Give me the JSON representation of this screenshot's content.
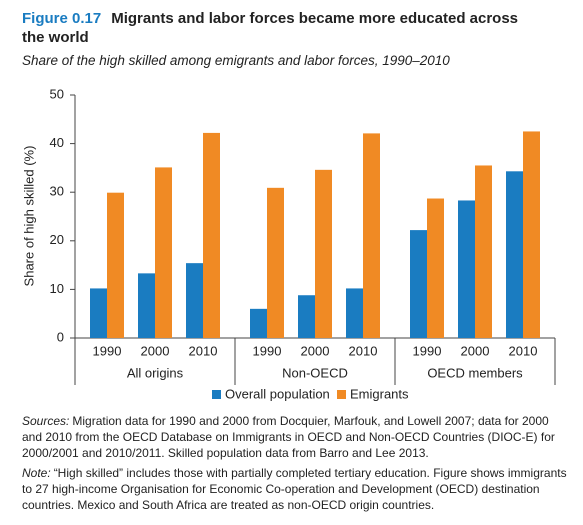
{
  "chart_data": {
    "type": "bar",
    "figure_label": "Figure 0.17",
    "title": "Migrants and labor forces became more educated across the world",
    "subtitle": "Share of the high skilled among emigrants and labor forces, 1990–2010",
    "y_label": "Share of high skilled (%)",
    "categories": [
      "1990",
      "2000",
      "2010",
      "1990",
      "2000",
      "2010",
      "1990",
      "2000",
      "2010"
    ],
    "category_groups": [
      "All origins",
      "Non-OECD",
      "OECD members"
    ],
    "series": [
      {
        "name": "Overall population",
        "color": "#1a7cc1",
        "values": [
          10.2,
          13.3,
          15.4,
          6.0,
          8.8,
          10.2,
          22.2,
          28.3,
          34.3
        ]
      },
      {
        "name": "Emigrants",
        "color": "#f08a24",
        "values": [
          29.9,
          35.1,
          42.2,
          30.9,
          34.6,
          42.1,
          28.7,
          35.5,
          42.5
        ]
      }
    ],
    "ylim": [
      0,
      50
    ],
    "yticks": [
      0,
      10,
      20,
      30,
      40,
      50
    ],
    "sources_label": "Sources:",
    "sources_text": "Migration data for 1990 and 2000 from Docquier, Marfouk, and Lowell 2007; data for 2000 and 2010 from the OECD Database on Immigrants in OECD and Non-OECD Countries (DIOC-E) for 2000/2001 and 2010/2011. Skilled population data from Barro and Lee 2013.",
    "note_label": "Note:",
    "note_text": "“High skilled” includes those with partially completed tertiary education. Figure shows immigrants to 27 high-income Organisation for Economic Co-operation and Development (OECD) destination countries. Mexico and South Africa are treated as non-OECD origin countries."
  }
}
